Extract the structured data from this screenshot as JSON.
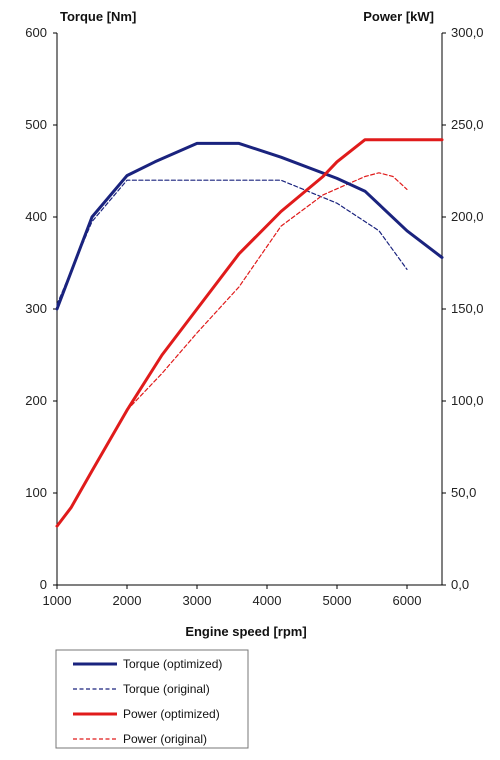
{
  "chart_data": {
    "type": "line",
    "xlabel": "Engine speed [rpm]",
    "ylabel_left": "Torque [Nm]",
    "ylabel_right": "Power [kW]",
    "xlim": [
      1000,
      6500
    ],
    "ylim_left": [
      0,
      600
    ],
    "ylim_right": [
      0,
      300
    ],
    "x_ticks": [
      "1000",
      "2000",
      "3000",
      "4000",
      "5000",
      "6000"
    ],
    "y_ticks_left": [
      "0",
      "100",
      "200",
      "300",
      "400",
      "500",
      "600"
    ],
    "y_ticks_right": [
      "0,0",
      "50,0",
      "100,0",
      "150,0",
      "200,0",
      "250,0",
      "300,0"
    ],
    "grid": false,
    "legend_position": "bottom-left",
    "colors": {
      "torque": "#1a237e",
      "power": "#e01b1b"
    },
    "series": [
      {
        "name": "Torque (optimized)",
        "axis": "left",
        "style": "solid",
        "color": "#1a237e",
        "points": [
          [
            1000,
            300
          ],
          [
            1500,
            400
          ],
          [
            2000,
            445
          ],
          [
            2400,
            460
          ],
          [
            3000,
            480
          ],
          [
            3600,
            480
          ],
          [
            4200,
            465
          ],
          [
            5000,
            442
          ],
          [
            5400,
            428
          ],
          [
            6000,
            385
          ],
          [
            6500,
            356
          ]
        ]
      },
      {
        "name": "Torque (original)",
        "axis": "left",
        "style": "dashed",
        "color": "#1a237e",
        "points": [
          [
            1000,
            305
          ],
          [
            1500,
            395
          ],
          [
            2000,
            440
          ],
          [
            3000,
            440
          ],
          [
            4200,
            440
          ],
          [
            5000,
            415
          ],
          [
            5600,
            385
          ],
          [
            6000,
            343
          ]
        ]
      },
      {
        "name": "Power (optimized)",
        "axis": "right",
        "style": "solid",
        "color": "#e01b1b",
        "points": [
          [
            1000,
            32
          ],
          [
            1200,
            42
          ],
          [
            1500,
            62
          ],
          [
            2000,
            95
          ],
          [
            2500,
            125
          ],
          [
            3000,
            150
          ],
          [
            3600,
            180
          ],
          [
            4200,
            203
          ],
          [
            4800,
            222
          ],
          [
            5000,
            230
          ],
          [
            5400,
            242
          ],
          [
            6500,
            242
          ]
        ]
      },
      {
        "name": "Power (original)",
        "axis": "right",
        "style": "dashed",
        "color": "#e01b1b",
        "points": [
          [
            2000,
            95
          ],
          [
            2500,
            115
          ],
          [
            3000,
            137
          ],
          [
            3600,
            162
          ],
          [
            4200,
            195
          ],
          [
            4800,
            212
          ],
          [
            5400,
            222
          ],
          [
            5600,
            224
          ],
          [
            5800,
            222
          ],
          [
            6000,
            215
          ]
        ]
      }
    ]
  }
}
